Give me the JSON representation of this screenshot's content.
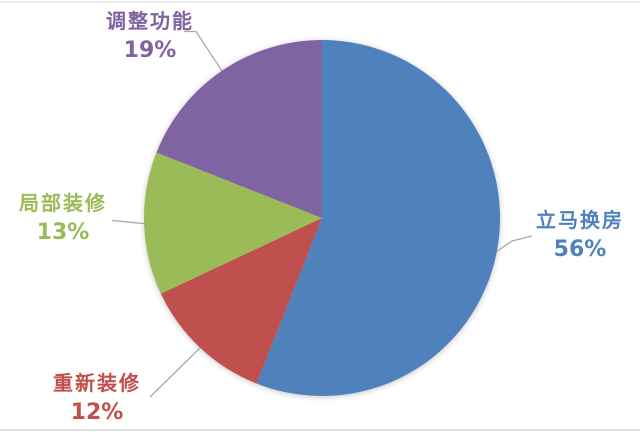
{
  "chart_data": {
    "type": "pie",
    "title": "",
    "direction": "clockwise",
    "start_angle_deg": 0,
    "legend_position": "none",
    "label_style": "outside-with-leader-lines",
    "slices": [
      {
        "label": "立马换房",
        "pct": 56,
        "pct_label": "56%",
        "color": "#4F81BD"
      },
      {
        "label": "重新装修",
        "pct": 12,
        "pct_label": "12%",
        "color": "#C0504D"
      },
      {
        "label": "局部装修",
        "pct": 13,
        "pct_label": "13%",
        "color": "#9BBB59"
      },
      {
        "label": "调整功能",
        "pct": 19,
        "pct_label": "19%",
        "color": "#8064A2"
      }
    ]
  },
  "colors": {
    "background": "#ffffff",
    "leader_line": "#a9a9a9",
    "edge_line_top": "#ececec",
    "edge_line_bottom": "#e0e0e0"
  }
}
